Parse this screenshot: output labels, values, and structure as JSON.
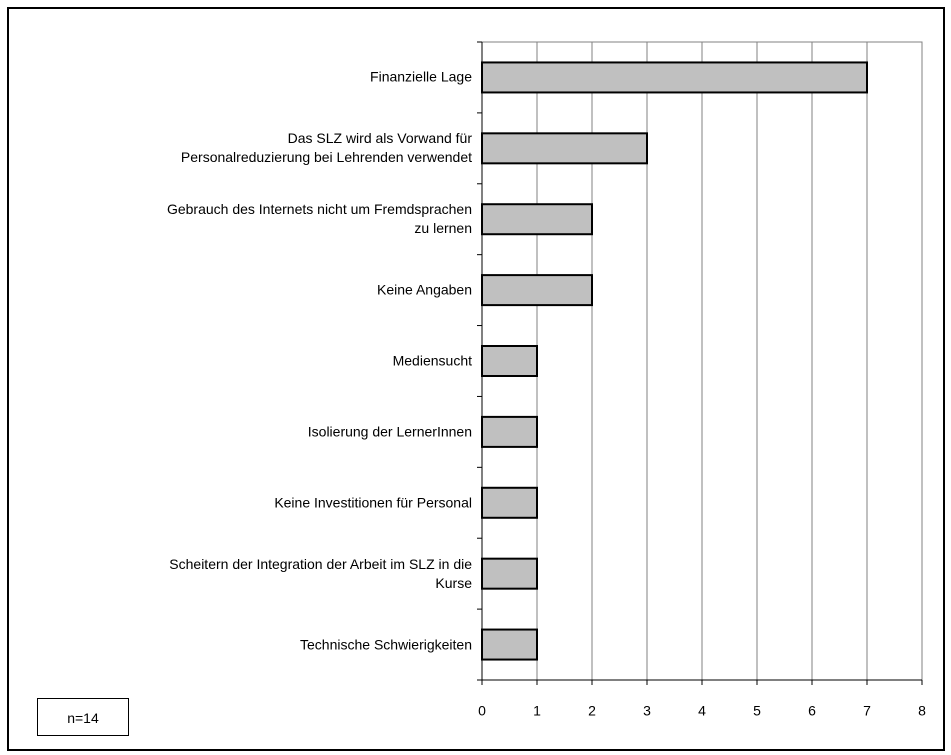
{
  "chart_data": {
    "type": "bar",
    "orientation": "horizontal",
    "categories": [
      "Finanzielle Lage",
      "Das SLZ wird als Vorwand für\nPersonalreduzierung bei Lehrenden verwendet",
      "Gebrauch des Internets nicht um Fremdsprachen\nzu lernen",
      "Keine Angaben",
      "Mediensucht",
      "Isolierung der LernerInnen",
      "Keine Investitionen für Personal",
      "Scheitern der Integration der Arbeit im SLZ in die\nKurse",
      "Technische Schwierigkeiten"
    ],
    "values": [
      7,
      3,
      2,
      2,
      1,
      1,
      1,
      1,
      1
    ],
    "color": "#c0c0c0",
    "xlim": [
      0,
      8
    ],
    "xticks": [
      0,
      1,
      2,
      3,
      4,
      5,
      6,
      7,
      8
    ],
    "grid": true,
    "annotation": "n=14"
  }
}
